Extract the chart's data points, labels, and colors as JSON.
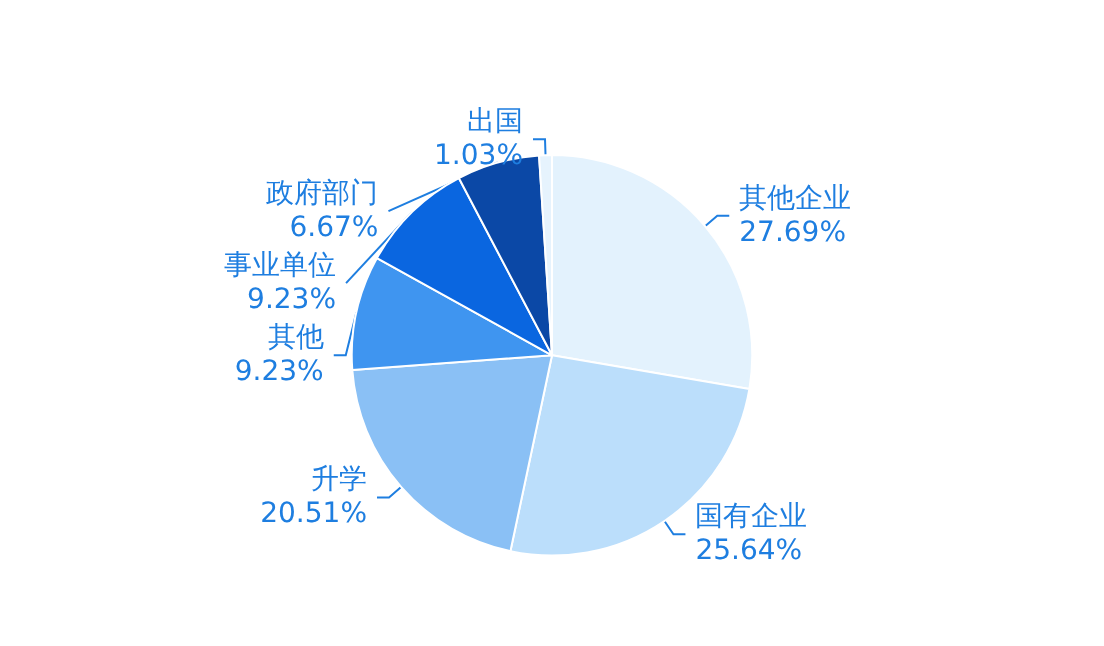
{
  "chart_data": {
    "type": "pie",
    "categories": [
      "其他企业",
      "国有企业",
      "升学",
      "其他",
      "事业单位",
      "政府部门",
      "出国"
    ],
    "values": [
      27.69,
      25.64,
      20.51,
      9.23,
      9.23,
      6.67,
      1.03
    ],
    "value_labels": [
      "27.69%",
      "25.64%",
      "20.51%",
      "9.23%",
      "9.23%",
      "6.67%",
      "1.03%"
    ],
    "colors": [
      "#e3f2fd",
      "#bbdefb",
      "#8ac0f5",
      "#3f95f0",
      "#0a66e0",
      "#0b48a6",
      "#e6f3fd"
    ],
    "legend": false
  }
}
